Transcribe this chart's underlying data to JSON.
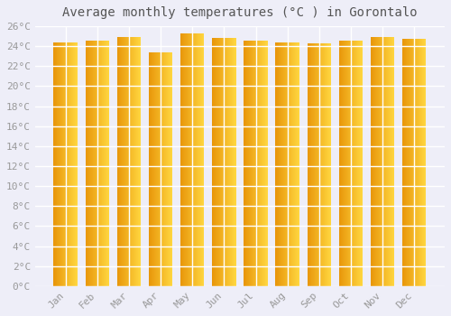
{
  "title": "Average monthly temperatures (°C ) in Gorontalo",
  "months": [
    "Jan",
    "Feb",
    "Mar",
    "Apr",
    "May",
    "Jun",
    "Jul",
    "Aug",
    "Sep",
    "Oct",
    "Nov",
    "Dec"
  ],
  "values": [
    24.4,
    24.6,
    24.9,
    23.4,
    25.3,
    24.8,
    24.6,
    24.4,
    24.3,
    24.6,
    24.9,
    24.7
  ],
  "bar_color_left": "#E8960A",
  "bar_color_center": "#FFB300",
  "bar_color_right": "#FFD740",
  "background_color": "#EEEEF8",
  "plot_bg_color": "#EEEEF8",
  "grid_color": "#FFFFFF",
  "ylim": [
    0,
    26
  ],
  "ytick_step": 2,
  "title_fontsize": 10,
  "tick_fontsize": 8,
  "tick_color": "#999999",
  "title_color": "#555555"
}
